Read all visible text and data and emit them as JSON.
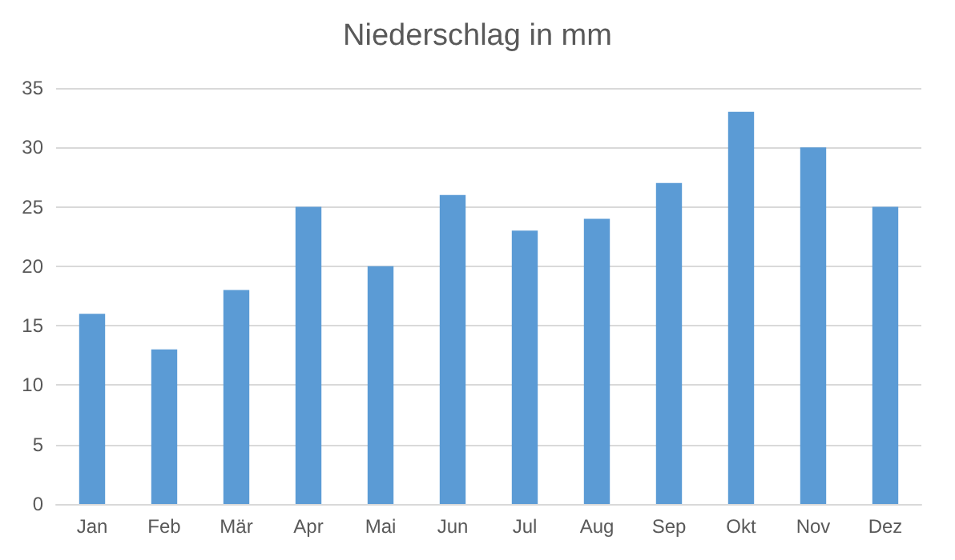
{
  "chart_data": {
    "type": "bar",
    "title": "Niederschlag in mm",
    "categories": [
      "Jan",
      "Feb",
      "Mär",
      "Apr",
      "Mai",
      "Jun",
      "Jul",
      "Aug",
      "Sep",
      "Okt",
      "Nov",
      "Dez"
    ],
    "values": [
      16,
      13,
      18,
      25,
      20,
      26,
      23,
      24,
      27,
      33,
      30,
      25
    ],
    "color": "#5b9bd5",
    "ylim": [
      0,
      35
    ],
    "yticks": [
      0,
      5,
      10,
      15,
      20,
      25,
      30,
      35
    ],
    "grid": "y"
  }
}
